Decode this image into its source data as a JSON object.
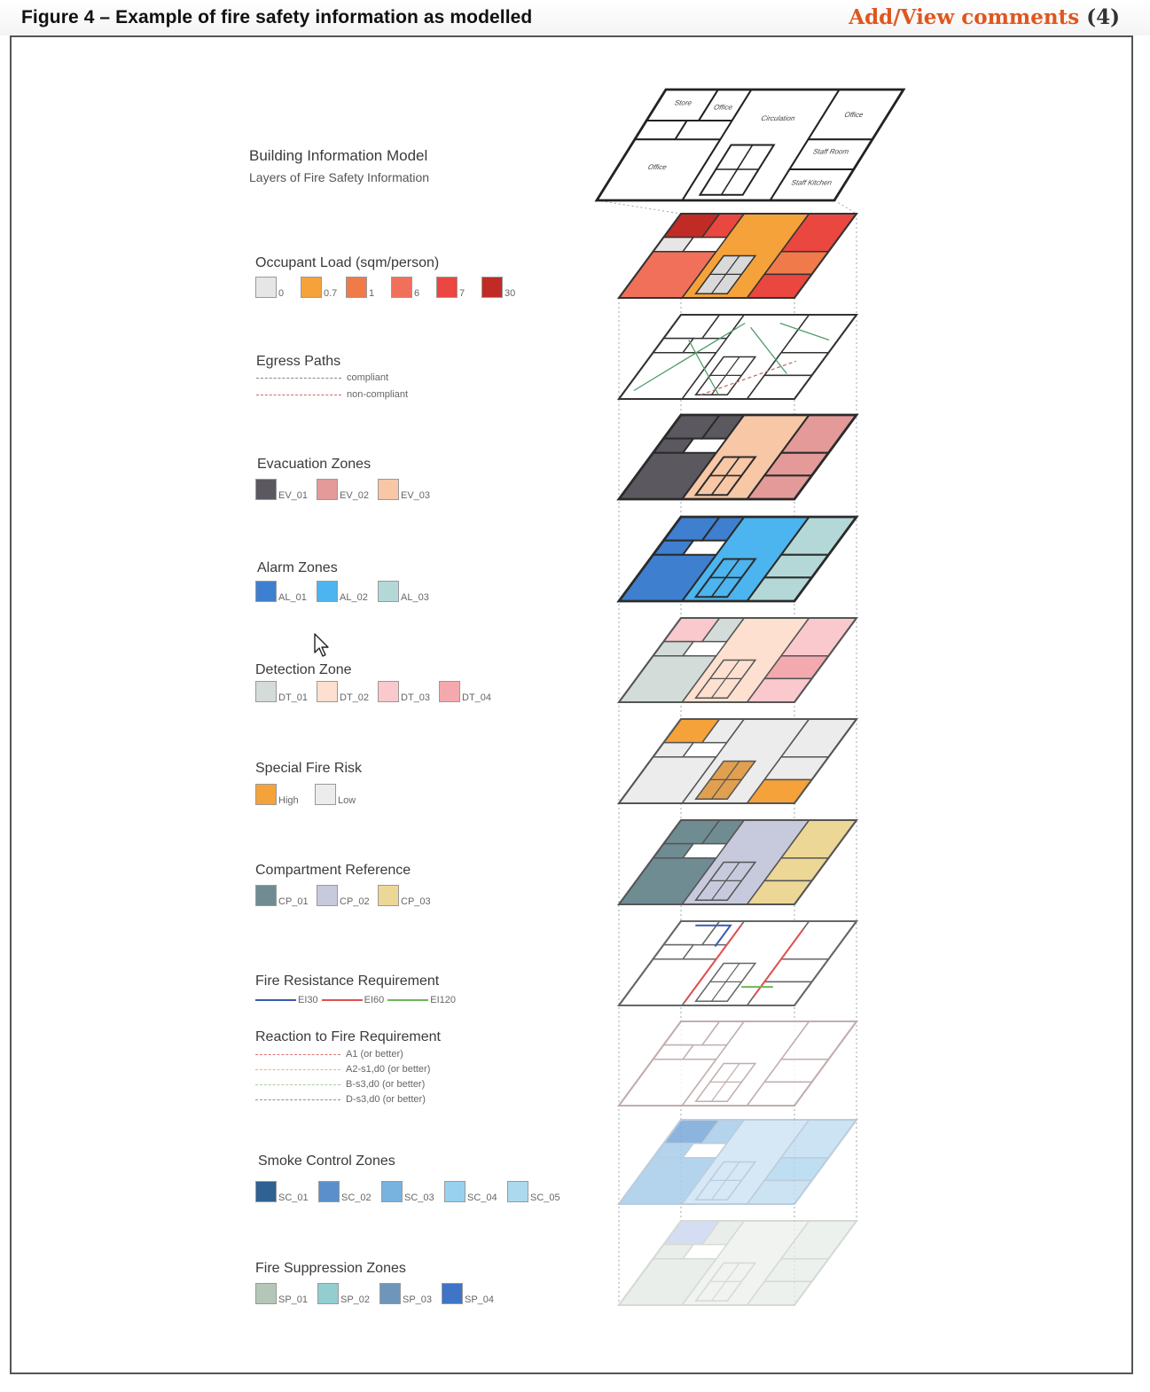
{
  "header": {
    "title": "Figure 4 – Example of fire safety information as modelled",
    "comments_label": "Add/View comments",
    "comments_count": "(4)"
  },
  "bim": {
    "title": "Building Information Model",
    "subtitle": "Layers of Fire Safety Information",
    "rooms": [
      "Store",
      "Office",
      "Circulation",
      "Office",
      "Staff Room",
      "Office",
      "Staff Kitchen"
    ]
  },
  "layers": [
    {
      "id": "occupant",
      "title": "Occupant Load (sqm/person)",
      "type": "swatch",
      "items": [
        {
          "label": "0",
          "color": "#e6e6e6"
        },
        {
          "label": "0.7",
          "color": "#f5a23a"
        },
        {
          "label": "1",
          "color": "#f07a4a"
        },
        {
          "label": "6",
          "color": "#f0705a"
        },
        {
          "label": "7",
          "color": "#e9473f"
        },
        {
          "label": "30",
          "color": "#c12b26"
        }
      ]
    },
    {
      "id": "egress",
      "title": "Egress Paths",
      "type": "dashed",
      "items": [
        {
          "label": "compliant",
          "color": "#7d8a90"
        },
        {
          "label": "non-compliant",
          "color": "#c96b6b"
        }
      ]
    },
    {
      "id": "evac",
      "title": "Evacuation Zones",
      "type": "swatch",
      "items": [
        {
          "label": "EV_01",
          "color": "#5c5860"
        },
        {
          "label": "EV_02",
          "color": "#e39a98"
        },
        {
          "label": "EV_03",
          "color": "#f7c7a6"
        }
      ]
    },
    {
      "id": "alarm",
      "title": "Alarm Zones",
      "type": "swatch",
      "items": [
        {
          "label": "AL_01",
          "color": "#3f7fcf"
        },
        {
          "label": "AL_02",
          "color": "#4cb4ee"
        },
        {
          "label": "AL_03",
          "color": "#b4d8d8"
        }
      ]
    },
    {
      "id": "detect",
      "title": "Detection Zone",
      "type": "swatch",
      "items": [
        {
          "label": "DT_01",
          "color": "#d3dcd8"
        },
        {
          "label": "DT_02",
          "color": "#fde0cf"
        },
        {
          "label": "DT_03",
          "color": "#f9c9cd"
        },
        {
          "label": "DT_04",
          "color": "#f4a9ae"
        }
      ]
    },
    {
      "id": "special",
      "title": "Special Fire Risk",
      "type": "swatch",
      "items": [
        {
          "label": "High",
          "color": "#f5a23a"
        },
        {
          "label": "Low",
          "color": "#ececec"
        }
      ]
    },
    {
      "id": "compart",
      "title": "Compartment Reference",
      "type": "swatch",
      "items": [
        {
          "label": "CP_01",
          "color": "#6f8c92"
        },
        {
          "label": "CP_02",
          "color": "#c7c9dd"
        },
        {
          "label": "CP_03",
          "color": "#ecd796"
        }
      ]
    },
    {
      "id": "resist",
      "title": "Fire Resistance Requirement",
      "type": "solid",
      "items": [
        {
          "label": "EI30",
          "color": "#3a5bb0"
        },
        {
          "label": "EI60",
          "color": "#e05050"
        },
        {
          "label": "EI120",
          "color": "#6fb55a"
        }
      ]
    },
    {
      "id": "reaction",
      "title": "Reaction to Fire Requirement",
      "type": "dashed",
      "items": [
        {
          "label": "A1 (or better)",
          "color": "#e07070"
        },
        {
          "label": "A2-s1,d0 (or better)",
          "color": "#f0b080"
        },
        {
          "label": "B-s3,d0 (or better)",
          "color": "#b0c8a0"
        },
        {
          "label": "D-s3,d0 (or better)",
          "color": "#909090"
        }
      ]
    },
    {
      "id": "smoke",
      "title": "Smoke Control Zones",
      "type": "swatch",
      "items": [
        {
          "label": "SC_01",
          "color": "#2f6292"
        },
        {
          "label": "SC_02",
          "color": "#5b8fcb"
        },
        {
          "label": "SC_03",
          "color": "#78b2df"
        },
        {
          "label": "SC_04",
          "color": "#98d1ef"
        },
        {
          "label": "SC_05",
          "color": "#add9ee"
        }
      ]
    },
    {
      "id": "suppress",
      "title": "Fire Suppression Zones",
      "type": "swatch",
      "items": [
        {
          "label": "SP_01",
          "color": "#b4c6b8"
        },
        {
          "label": "SP_02",
          "color": "#93cdd0"
        },
        {
          "label": "SP_03",
          "color": "#6e96ba"
        },
        {
          "label": "SP_04",
          "color": "#3f74c6"
        }
      ]
    }
  ]
}
